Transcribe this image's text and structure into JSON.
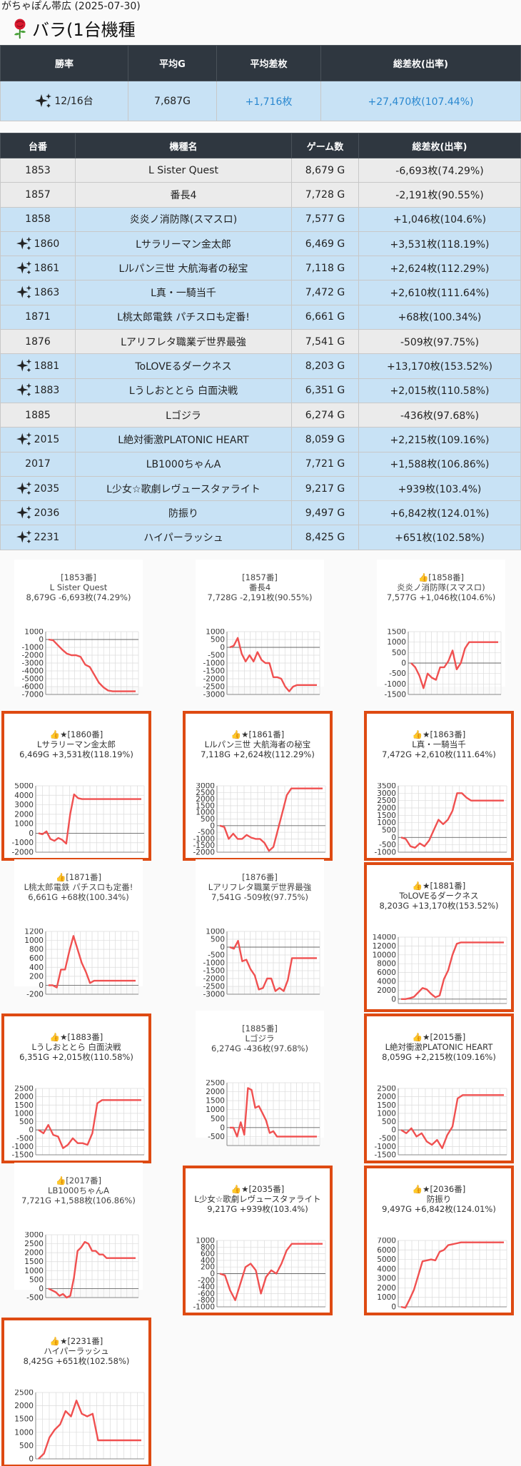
{
  "header": {
    "store": "がちゃぽん帯広 (2025-07-30)",
    "title": "バラ(1台機種",
    "rose_icon": "rose-icon"
  },
  "summary": {
    "headers": [
      "勝率",
      "平均G",
      "平均差枚",
      "総差枚(出率)"
    ],
    "win_rate": "12/16台",
    "avg_games": "7,687G",
    "avg_diff": "+1,716枚",
    "total": "+27,470枚(107.44%)"
  },
  "units_table": {
    "headers": [
      "台番",
      "機種名",
      "ゲーム数",
      "総差枚(出率)"
    ],
    "rows": [
      {
        "no": "1853",
        "name": "L Sister Quest",
        "games": "8,679 G",
        "diff": "-6,693枚(74.29%)",
        "type": "minus",
        "star": false
      },
      {
        "no": "1857",
        "name": "番長4",
        "games": "7,728 G",
        "diff": "-2,191枚(90.55%)",
        "type": "minus",
        "star": false
      },
      {
        "no": "1858",
        "name": "炎炎ノ消防隊(スマスロ)",
        "games": "7,577 G",
        "diff": "+1,046枚(104.6%)",
        "type": "plus",
        "star": false
      },
      {
        "no": "1860",
        "name": "Lサラリーマン金太郎",
        "games": "6,469 G",
        "diff": "+3,531枚(118.19%)",
        "type": "plus",
        "star": true
      },
      {
        "no": "1861",
        "name": "Lルパン三世 大航海者の秘宝",
        "games": "7,118 G",
        "diff": "+2,624枚(112.29%)",
        "type": "plus",
        "star": true
      },
      {
        "no": "1863",
        "name": "L真・一騎当千",
        "games": "7,472 G",
        "diff": "+2,610枚(111.64%)",
        "type": "plus",
        "star": true
      },
      {
        "no": "1871",
        "name": "L桃太郎電鉄 パチスロも定番!",
        "games": "6,661 G",
        "diff": "+68枚(100.34%)",
        "type": "plus",
        "star": false
      },
      {
        "no": "1876",
        "name": "Lアリフレタ職業デ世界最強",
        "games": "7,541 G",
        "diff": "-509枚(97.75%)",
        "type": "minus",
        "star": false
      },
      {
        "no": "1881",
        "name": "ToLOVEるダークネス",
        "games": "8,203 G",
        "diff": "+13,170枚(153.52%)",
        "type": "plus",
        "star": true
      },
      {
        "no": "1883",
        "name": "Lうしおととら 白面決戦",
        "games": "6,351 G",
        "diff": "+2,015枚(110.58%)",
        "type": "plus",
        "star": true
      },
      {
        "no": "1885",
        "name": "Lゴジラ",
        "games": "6,274 G",
        "diff": "-436枚(97.68%)",
        "type": "minus",
        "star": false
      },
      {
        "no": "2015",
        "name": "L絶対衝激PLATONIC HEART",
        "games": "8,059 G",
        "diff": "+2,215枚(109.16%)",
        "type": "plus",
        "star": true
      },
      {
        "no": "2017",
        "name": "LB1000ちゃんA",
        "games": "7,721 G",
        "diff": "+1,588枚(106.86%)",
        "type": "plus",
        "star": false
      },
      {
        "no": "2035",
        "name": "L少女☆歌劇レヴュースタァライト",
        "games": "9,217 G",
        "diff": "+939枚(103.4%)",
        "type": "plus",
        "star": true
      },
      {
        "no": "2036",
        "name": "防振り",
        "games": "9,497 G",
        "diff": "+6,842枚(124.01%)",
        "type": "plus",
        "star": true
      },
      {
        "no": "2231",
        "name": "ハイパーラッシュ",
        "games": "8,425 G",
        "diff": "+651枚(102.58%)",
        "type": "plus",
        "star": true
      }
    ]
  },
  "colors": {
    "header_bg": "#2f3740",
    "plus_row": "#c8e2f5",
    "minus_row": "#ebebeb",
    "line": "#f05050",
    "highlight": "#de4a12",
    "accent_text": "#2a88d0"
  },
  "chart_data": [
    {
      "type": "line",
      "title": "[1853番]",
      "subtitle1": "L Sister Quest",
      "subtitle2": "8,679G -6,693枚(74.29%)",
      "thumb": false,
      "star": false,
      "highlight": false,
      "ylim": [
        -7000,
        1000
      ],
      "yticks": [
        1000,
        0,
        -1000,
        -2000,
        -3000,
        -4000,
        -5000,
        -6000,
        -7000
      ],
      "y": [
        0,
        -100,
        -700,
        -1300,
        -1800,
        -2000,
        -2000,
        -2200,
        -3200,
        -3500,
        -4500,
        -5500,
        -6100,
        -6500,
        -6600,
        -6600,
        -6600,
        -6600,
        -6600,
        -6600
      ]
    },
    {
      "type": "line",
      "title": "[1857番]",
      "subtitle1": "番長4",
      "subtitle2": "7,728G -2,191枚(90.55%)",
      "thumb": false,
      "star": false,
      "highlight": false,
      "ylim": [
        -3000,
        1000
      ],
      "yticks": [
        1000,
        500,
        0,
        -500,
        -1000,
        -1500,
        -2000,
        -2500,
        -3000
      ],
      "y": [
        0,
        100,
        600,
        -400,
        -900,
        -500,
        -900,
        -300,
        -800,
        -1000,
        -1000,
        -1900,
        -1900,
        -2000,
        -2500,
        -2800,
        -2500,
        -2400,
        -2400,
        -2400,
        -2400,
        -2400,
        -2400
      ]
    },
    {
      "type": "line",
      "title": "[1858番]",
      "subtitle1": "炎炎ノ消防隊(スマスロ)",
      "subtitle2": "7,577G +1,046枚(104.6%)",
      "thumb": true,
      "star": false,
      "highlight": false,
      "ylim": [
        -1500,
        1500
      ],
      "yticks": [
        1500,
        1000,
        500,
        0,
        -500,
        -1000,
        -1500
      ],
      "y": [
        0,
        -200,
        -600,
        -1200,
        -500,
        -700,
        -800,
        -200,
        -200,
        100,
        600,
        -300,
        0,
        700,
        1000,
        1000,
        1000,
        1000,
        1000,
        1000,
        1000,
        1000
      ]
    },
    {
      "type": "line",
      "title": "[1860番]",
      "subtitle1": "Lサラリーマン金太郎",
      "subtitle2": "6,469G +3,531枚(118.19%)",
      "thumb": true,
      "star": true,
      "highlight": true,
      "ylim": [
        -2000,
        5000
      ],
      "yticks": [
        5000,
        4000,
        3000,
        2000,
        1000,
        0,
        -1000,
        -2000
      ],
      "y": [
        0,
        -100,
        200,
        -600,
        -800,
        -500,
        -700,
        -1100,
        2000,
        4100,
        3700,
        3600,
        3600,
        3600,
        3600,
        3600,
        3600,
        3600,
        3600,
        3600,
        3600,
        3600,
        3600,
        3600,
        3600,
        3600,
        3600
      ]
    },
    {
      "type": "line",
      "title": "[1861番]",
      "subtitle1": "Lルパン三世 大航海者の秘宝",
      "subtitle2": "7,118G +2,624枚(112.29%)",
      "thumb": true,
      "star": true,
      "highlight": true,
      "ylim": [
        -2000,
        3000
      ],
      "yticks": [
        3000,
        2500,
        2000,
        1500,
        1000,
        500,
        0,
        -500,
        -1000,
        -1500,
        -2000
      ],
      "y": [
        0,
        -100,
        -1000,
        -600,
        -1000,
        -1000,
        -700,
        -900,
        -1000,
        -1000,
        -1300,
        -1900,
        -1600,
        -300,
        1000,
        2300,
        2800,
        2800,
        2800,
        2800,
        2800,
        2800,
        2800,
        2800
      ]
    },
    {
      "type": "line",
      "title": "[1863番]",
      "subtitle1": "L真・一騎当千",
      "subtitle2": "7,472G +2,610枚(111.64%)",
      "thumb": true,
      "star": true,
      "highlight": true,
      "ylim": [
        -1000,
        3500
      ],
      "yticks": [
        3500,
        3000,
        2500,
        2000,
        1500,
        1000,
        500,
        0,
        -500,
        -1000
      ],
      "y": [
        0,
        -100,
        -600,
        -700,
        -400,
        -600,
        -200,
        500,
        1200,
        900,
        1200,
        1800,
        3000,
        3000,
        2700,
        2500,
        2500,
        2500,
        2500,
        2500,
        2500,
        2500,
        2500
      ]
    },
    {
      "type": "line",
      "title": "[1871番]",
      "subtitle1": "L桃太郎電鉄 パチスロも定番!",
      "subtitle2": "6,661G +68枚(100.34%)",
      "thumb": true,
      "star": false,
      "highlight": false,
      "ylim": [
        -200,
        1200
      ],
      "yticks": [
        1200,
        1000,
        800,
        600,
        400,
        200,
        0,
        -200
      ],
      "y": [
        0,
        0,
        -50,
        350,
        350,
        750,
        1100,
        800,
        500,
        300,
        50,
        100,
        100,
        100,
        100,
        100,
        100,
        100,
        100,
        100,
        100,
        100
      ]
    },
    {
      "type": "line",
      "title": "[1876番]",
      "subtitle1": "Lアリフレタ職業デ世界最強",
      "subtitle2": "7,541G -509枚(97.75%)",
      "thumb": false,
      "star": false,
      "highlight": false,
      "ylim": [
        -3000,
        1000
      ],
      "yticks": [
        1000,
        500,
        0,
        -500,
        -1000,
        -1500,
        -2000,
        -2500,
        -3000
      ],
      "y": [
        0,
        -100,
        400,
        -900,
        -800,
        -1400,
        -1800,
        -2700,
        -2600,
        -2000,
        -2000,
        -2800,
        -2600,
        -2800,
        -2100,
        -700,
        -700,
        -700,
        -700,
        -700,
        -700,
        -700
      ]
    },
    {
      "type": "line",
      "title": "[1881番]",
      "subtitle1": "ToLOVEるダークネス",
      "subtitle2": "8,203G +13,170枚(153.52%)",
      "thumb": true,
      "star": true,
      "highlight": true,
      "ylim": [
        -1000,
        14000
      ],
      "yticks": [
        14000,
        12000,
        10000,
        8000,
        6000,
        4000,
        2000,
        0
      ],
      "y": [
        0,
        0,
        200,
        500,
        1500,
        2500,
        2200,
        1200,
        400,
        800,
        4500,
        6500,
        10000,
        12500,
        12800,
        12800,
        12800,
        12800,
        12800,
        12800,
        12800,
        12800,
        12800,
        12800,
        12800
      ]
    },
    {
      "type": "line",
      "title": "[1883番]",
      "subtitle1": "Lうしおととら 白面決戦",
      "subtitle2": "6,351G +2,015枚(110.58%)",
      "thumb": true,
      "star": true,
      "highlight": true,
      "ylim": [
        -1500,
        2500
      ],
      "yticks": [
        2500,
        2000,
        1500,
        1000,
        500,
        0,
        -500,
        -1000,
        -1500
      ],
      "y": [
        0,
        -200,
        300,
        -300,
        -400,
        -1100,
        -900,
        -500,
        -800,
        -800,
        -900,
        -200,
        1600,
        1800,
        1800,
        1800,
        1800,
        1800,
        1800,
        1800,
        1800,
        1800
      ]
    },
    {
      "type": "line",
      "title": "[1885番]",
      "subtitle1": "Lゴジラ",
      "subtitle2": "6,274G -436枚(97.68%)",
      "thumb": false,
      "star": false,
      "highlight": false,
      "ylim": [
        -1000,
        2500
      ],
      "yticks": [
        2500,
        2000,
        1500,
        1000,
        500,
        0,
        -500
      ],
      "y": [
        0,
        0,
        -500,
        300,
        -400,
        2200,
        2100,
        1100,
        1200,
        800,
        400,
        -300,
        -200,
        -500,
        -500,
        -500,
        -500,
        -500,
        -500,
        -500,
        -500,
        -500,
        -500,
        -500,
        -500
      ]
    },
    {
      "type": "line",
      "title": "[2015番]",
      "subtitle1": "L絶対衝激PLATONIC HEART",
      "subtitle2": "8,059G +2,215枚(109.16%)",
      "thumb": true,
      "star": true,
      "highlight": true,
      "ylim": [
        -1500,
        2500
      ],
      "yticks": [
        2500,
        2000,
        1500,
        1000,
        500,
        0,
        -500,
        -1000,
        -1500
      ],
      "y": [
        0,
        -200,
        100,
        -400,
        -200,
        -700,
        -900,
        -600,
        -1100,
        -300,
        200,
        1900,
        2100,
        2100,
        2100,
        2100,
        2100,
        2100,
        2100,
        2100,
        2100
      ]
    },
    {
      "type": "line",
      "title": "[2017番]",
      "subtitle1": "LB1000ちゃんA",
      "subtitle2": "7,721G +1,588枚(106.86%)",
      "thumb": true,
      "star": false,
      "highlight": false,
      "ylim": [
        -500,
        3000
      ],
      "yticks": [
        3000,
        2500,
        2000,
        1500,
        1000,
        500,
        0,
        -500
      ],
      "y": [
        0,
        -100,
        -200,
        -400,
        -300,
        -500,
        -400,
        600,
        2100,
        2300,
        2600,
        2500,
        2100,
        2100,
        1900,
        1900,
        1700,
        1700,
        1700,
        1700,
        1700,
        1700,
        1700,
        1700,
        1700
      ]
    },
    {
      "type": "line",
      "title": "[2035番]",
      "subtitle1": "L少女☆歌劇レヴュースタァライト",
      "subtitle2": "9,217G +939枚(103.4%)",
      "thumb": true,
      "star": true,
      "highlight": true,
      "ylim": [
        -1000,
        1000
      ],
      "yticks": [
        1000,
        800,
        600,
        400,
        200,
        0,
        -200,
        -400,
        -600,
        -800,
        -1000
      ],
      "y": [
        0,
        -50,
        -500,
        -800,
        -300,
        200,
        300,
        100,
        -600,
        -100,
        100,
        0,
        300,
        700,
        900,
        900,
        900,
        900,
        900,
        900,
        900
      ]
    },
    {
      "type": "line",
      "title": "[2036番]",
      "subtitle1": "防振り",
      "subtitle2": "9,497G +6,842枚(124.01%)",
      "thumb": true,
      "star": true,
      "highlight": true,
      "ylim": [
        0,
        7000
      ],
      "yticks": [
        7000,
        6000,
        5000,
        4000,
        3000,
        2000,
        1000,
        0
      ],
      "y": [
        0,
        -100,
        800,
        1800,
        3300,
        4800,
        4900,
        5000,
        4900,
        5800,
        6000,
        6500,
        6600,
        6700,
        6800,
        6800,
        6800,
        6800,
        6800,
        6800,
        6800,
        6800,
        6800,
        6800,
        6800
      ]
    },
    {
      "type": "line",
      "title": "[2231番]",
      "subtitle1": "ハイパーラッシュ",
      "subtitle2": "8,425G +651枚(102.58%)",
      "thumb": true,
      "star": true,
      "highlight": true,
      "ylim": [
        0,
        2500
      ],
      "yticks": [
        2500,
        2000,
        1500,
        1000,
        500,
        0
      ],
      "y": [
        0,
        200,
        800,
        1100,
        1300,
        1800,
        1600,
        2200,
        1700,
        1600,
        1700,
        700,
        700,
        700,
        700,
        700,
        700,
        700,
        700,
        700
      ]
    }
  ]
}
